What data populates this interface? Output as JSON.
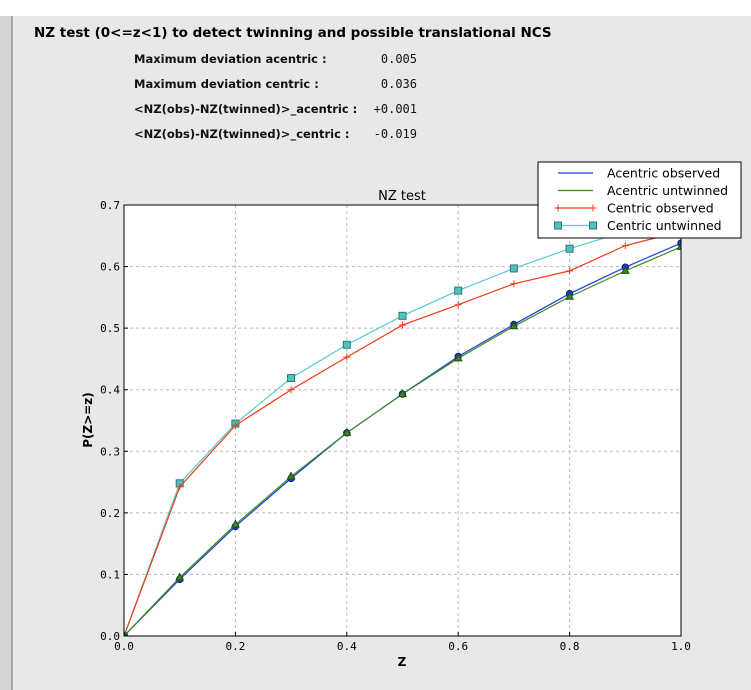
{
  "header": {
    "title": "NZ test (0<=z<1) to detect twinning and possible translational NCS"
  },
  "stats": [
    {
      "label": "Maximum deviation acentric :",
      "value": "0.005"
    },
    {
      "label": "Maximum deviation centric :",
      "value": "0.036"
    },
    {
      "label": "<NZ(obs)-NZ(twinned)>_acentric :",
      "value": "+0.001"
    },
    {
      "label": "<NZ(obs)-NZ(twinned)>_centric :",
      "value": "-0.019"
    }
  ],
  "chart_data": {
    "type": "line",
    "title": "NZ test",
    "xlabel": "Z",
    "ylabel": "P(Z>=z)",
    "xlim": [
      0,
      1
    ],
    "ylim": [
      0,
      0.7
    ],
    "xticks": [
      "0.0",
      "0.2",
      "0.4",
      "0.6",
      "0.8",
      "1.0"
    ],
    "yticks": [
      "0.0",
      "0.1",
      "0.2",
      "0.3",
      "0.4",
      "0.5",
      "0.6",
      "0.7"
    ],
    "grid": true,
    "legend": "top-right",
    "x": [
      0,
      0.1,
      0.2,
      0.3,
      0.4,
      0.5,
      0.6,
      0.7,
      0.8,
      0.9,
      1.0
    ],
    "series": [
      {
        "name": "Acentric observed",
        "color": "#1f3fe0",
        "marker": "circle",
        "values": [
          0,
          0.092,
          0.178,
          0.256,
          0.33,
          0.393,
          0.454,
          0.506,
          0.556,
          0.599,
          0.638
        ]
      },
      {
        "name": "Acentric untwinned",
        "color": "#3a8a1e",
        "marker": "triangle",
        "values": [
          0,
          0.095,
          0.181,
          0.259,
          0.33,
          0.393,
          0.451,
          0.503,
          0.551,
          0.593,
          0.632
        ]
      },
      {
        "name": "Centric observed",
        "color": "#f03a1a",
        "marker": "plus",
        "values": [
          0,
          0.242,
          0.342,
          0.4,
          0.453,
          0.505,
          0.538,
          0.572,
          0.593,
          0.634,
          0.657
        ]
      },
      {
        "name": "Centric untwinned",
        "color": "#55cccc",
        "marker": "square",
        "values": [
          0,
          0.248,
          0.345,
          0.419,
          0.473,
          0.52,
          0.561,
          0.597,
          0.629,
          0.657,
          0.683
        ]
      }
    ]
  }
}
